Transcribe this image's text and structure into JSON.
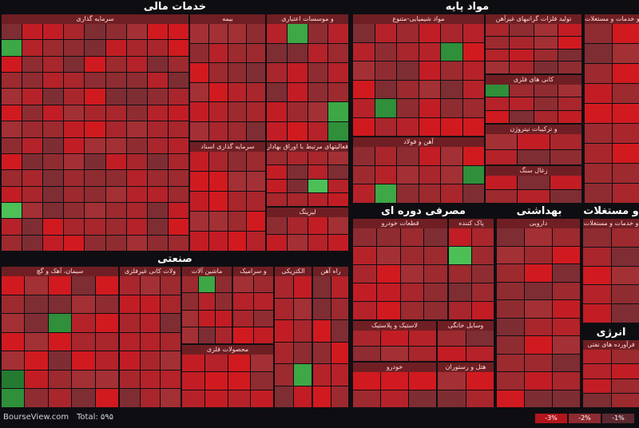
{
  "footer": {
    "source": "BourseView.com",
    "total": "Total: ۵۹۵"
  },
  "legend": [
    "-3%",
    "-2%",
    "-1%"
  ],
  "legend_colors": [
    "#b3151c",
    "#8e2a30",
    "#5c2830"
  ],
  "sectors": [
    {
      "title": "خدمات مالی",
      "groups": [
        "سرمایه گذاری",
        "بیمه",
        "و موسسات اعتباری",
        "فعالیتهای مرتبط با اوراق بهادار",
        "سرمایه گذاری اسناد",
        "لیزینگ"
      ]
    },
    {
      "title": "مواد پایه",
      "groups": [
        "مواد شیمیایی-متنوع",
        "تولید فلزات گرانبهای غیرآهن",
        "کانی های فلزی",
        "و ترکیبات نیتروژن",
        "آهن و فولاد",
        "زغال سنگ"
      ]
    },
    {
      "title": "صنعتی",
      "groups": [
        "سیمان، آهک و گچ",
        "ولات کانی غیرفلزی",
        "ماشین آلات",
        "و سرامیک",
        "الکتریکی",
        "راه آهن",
        "محصولات فلزی"
      ]
    },
    {
      "title": "مصرفی دوره ای",
      "groups": [
        "قطعات خودرو",
        "پاک کننده",
        "لاستیک و پلاستیک",
        "وسایل خانگی",
        "هتل و رستوران",
        "خودرو"
      ]
    },
    {
      "title": "بهداشتی",
      "groups": [
        "دارویی"
      ]
    },
    {
      "title": "و مستغلات",
      "groups": [
        "و خدمات و مستغلات"
      ]
    },
    {
      "title": "انرژی",
      "groups": [
        "فرآورده های نفتی"
      ]
    }
  ]
}
